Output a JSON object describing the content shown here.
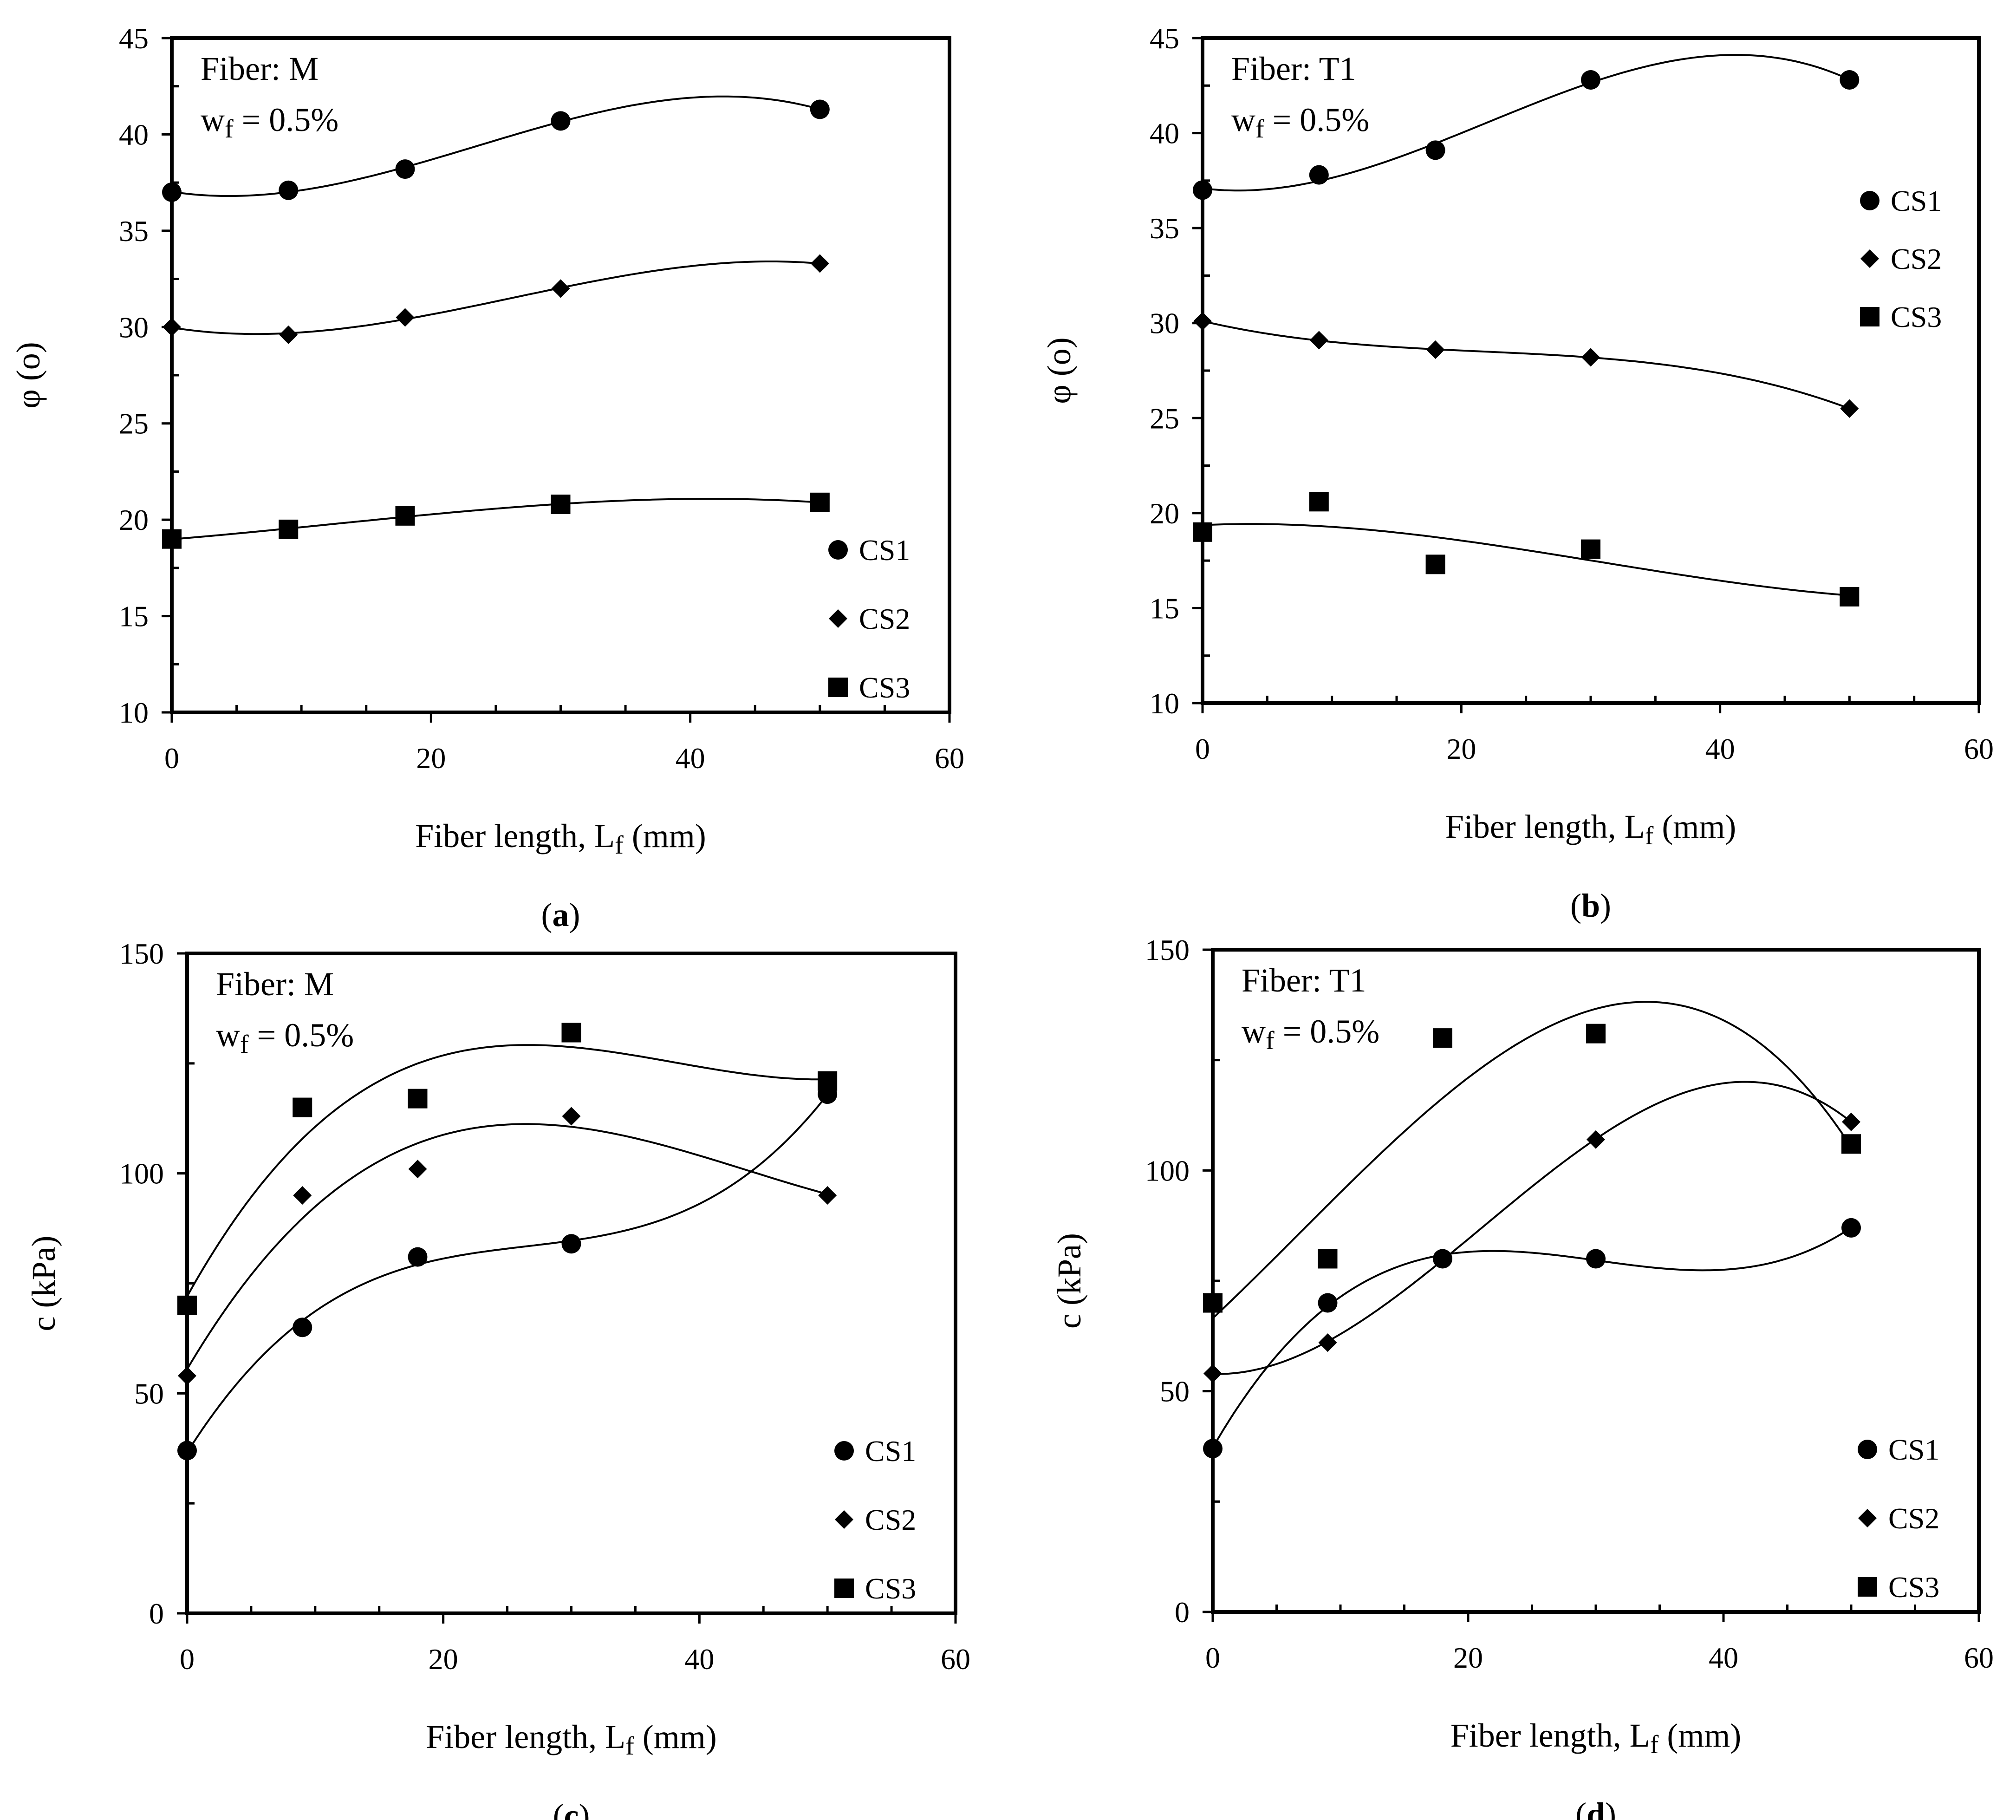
{
  "chart_data": [
    {
      "id": "a",
      "type": "scatter",
      "caption": "a",
      "annotation": {
        "title": "Fiber: M",
        "wf_main": "w",
        "wf_sub": "f",
        "wf_rest": " = 0.5%"
      },
      "xlabel": {
        "main": "Fiber length, L",
        "sub": "f",
        "rest": " (mm)"
      },
      "ylabel": "φ (o)",
      "xlim": [
        0,
        60
      ],
      "ylim": [
        10,
        45
      ],
      "xticks": [
        "0",
        "20",
        "40",
        "60"
      ],
      "yticks": [
        "10",
        "15",
        "20",
        "25",
        "30",
        "35",
        "40",
        "45"
      ],
      "legend_position": "bottom-right",
      "series": [
        {
          "name": "CS1",
          "marker": "circle",
          "x": [
            0,
            9,
            18,
            30,
            50
          ],
          "y": [
            37.0,
            37.1,
            38.2,
            40.7,
            41.3
          ]
        },
        {
          "name": "CS2",
          "marker": "diamond",
          "x": [
            0,
            9,
            18,
            30,
            50
          ],
          "y": [
            30.0,
            29.6,
            30.5,
            32.0,
            33.3
          ]
        },
        {
          "name": "CS3",
          "marker": "square",
          "x": [
            0,
            9,
            18,
            30,
            50
          ],
          "y": [
            19.0,
            19.5,
            20.2,
            20.8,
            20.9
          ]
        }
      ]
    },
    {
      "id": "b",
      "type": "scatter",
      "caption": "b",
      "annotation": {
        "title": "Fiber: T1",
        "wf_main": "w",
        "wf_sub": "f",
        "wf_rest": " = 0.5%"
      },
      "xlabel": {
        "main": "Fiber length, L",
        "sub": "f",
        "rest": " (mm)"
      },
      "ylabel": "φ (o)",
      "xlim": [
        0,
        60
      ],
      "ylim": [
        10,
        45
      ],
      "xticks": [
        "0",
        "20",
        "40",
        "60"
      ],
      "yticks": [
        "10",
        "15",
        "20",
        "25",
        "30",
        "35",
        "40",
        "45"
      ],
      "legend_position": "top-right",
      "series": [
        {
          "name": "CS1",
          "marker": "circle",
          "x": [
            0,
            9,
            18,
            30,
            50
          ],
          "y": [
            37.0,
            37.8,
            39.1,
            42.8,
            42.8
          ]
        },
        {
          "name": "CS2",
          "marker": "diamond",
          "x": [
            0,
            9,
            18,
            30,
            50
          ],
          "y": [
            30.1,
            29.1,
            28.6,
            28.2,
            25.5
          ]
        },
        {
          "name": "CS3",
          "marker": "square",
          "x": [
            0,
            9,
            18,
            30,
            50
          ],
          "y": [
            19.0,
            20.6,
            17.3,
            18.1,
            15.6
          ]
        }
      ]
    },
    {
      "id": "c",
      "type": "scatter",
      "caption": "c",
      "annotation": {
        "title": "Fiber: M",
        "wf_main": "w",
        "wf_sub": "f",
        "wf_rest": " = 0.5%"
      },
      "xlabel": {
        "main": "Fiber length, L",
        "sub": "f",
        "rest": " (mm)"
      },
      "ylabel": "c (kPa)",
      "xlim": [
        0,
        60
      ],
      "ylim": [
        0,
        150
      ],
      "xticks": [
        "0",
        "20",
        "40",
        "60"
      ],
      "yticks": [
        "0",
        "50",
        "100",
        "150"
      ],
      "legend_position": "bottom-right",
      "series": [
        {
          "name": "CS1",
          "marker": "circle",
          "x": [
            0,
            9,
            18,
            30,
            50
          ],
          "y": [
            37,
            65,
            81,
            84,
            118
          ]
        },
        {
          "name": "CS2",
          "marker": "diamond",
          "x": [
            0,
            9,
            18,
            30,
            50
          ],
          "y": [
            54,
            95,
            101,
            113,
            95
          ]
        },
        {
          "name": "CS3",
          "marker": "square",
          "x": [
            0,
            9,
            18,
            30,
            50
          ],
          "y": [
            70,
            115,
            117,
            132,
            121
          ]
        }
      ]
    },
    {
      "id": "d",
      "type": "scatter",
      "caption": "d",
      "annotation": {
        "title": "Fiber: T1",
        "wf_main": "w",
        "wf_sub": "f",
        "wf_rest": " = 0.5%"
      },
      "xlabel": {
        "main": "Fiber length, L",
        "sub": "f",
        "rest": " (mm)"
      },
      "ylabel": "c (kPa)",
      "xlim": [
        0,
        60
      ],
      "ylim": [
        0,
        150
      ],
      "xticks": [
        "0",
        "20",
        "40",
        "60"
      ],
      "yticks": [
        "0",
        "50",
        "100",
        "150"
      ],
      "legend_position": "bottom-right",
      "series": [
        {
          "name": "CS1",
          "marker": "circle",
          "x": [
            0,
            9,
            18,
            30,
            50
          ],
          "y": [
            37,
            70,
            80,
            80,
            87
          ]
        },
        {
          "name": "CS2",
          "marker": "diamond",
          "x": [
            0,
            9,
            18,
            30,
            50
          ],
          "y": [
            54,
            61,
            80,
            107,
            111
          ]
        },
        {
          "name": "CS3",
          "marker": "square",
          "x": [
            0,
            9,
            18,
            30,
            50
          ],
          "y": [
            70,
            80,
            130,
            131,
            106
          ]
        }
      ]
    }
  ]
}
